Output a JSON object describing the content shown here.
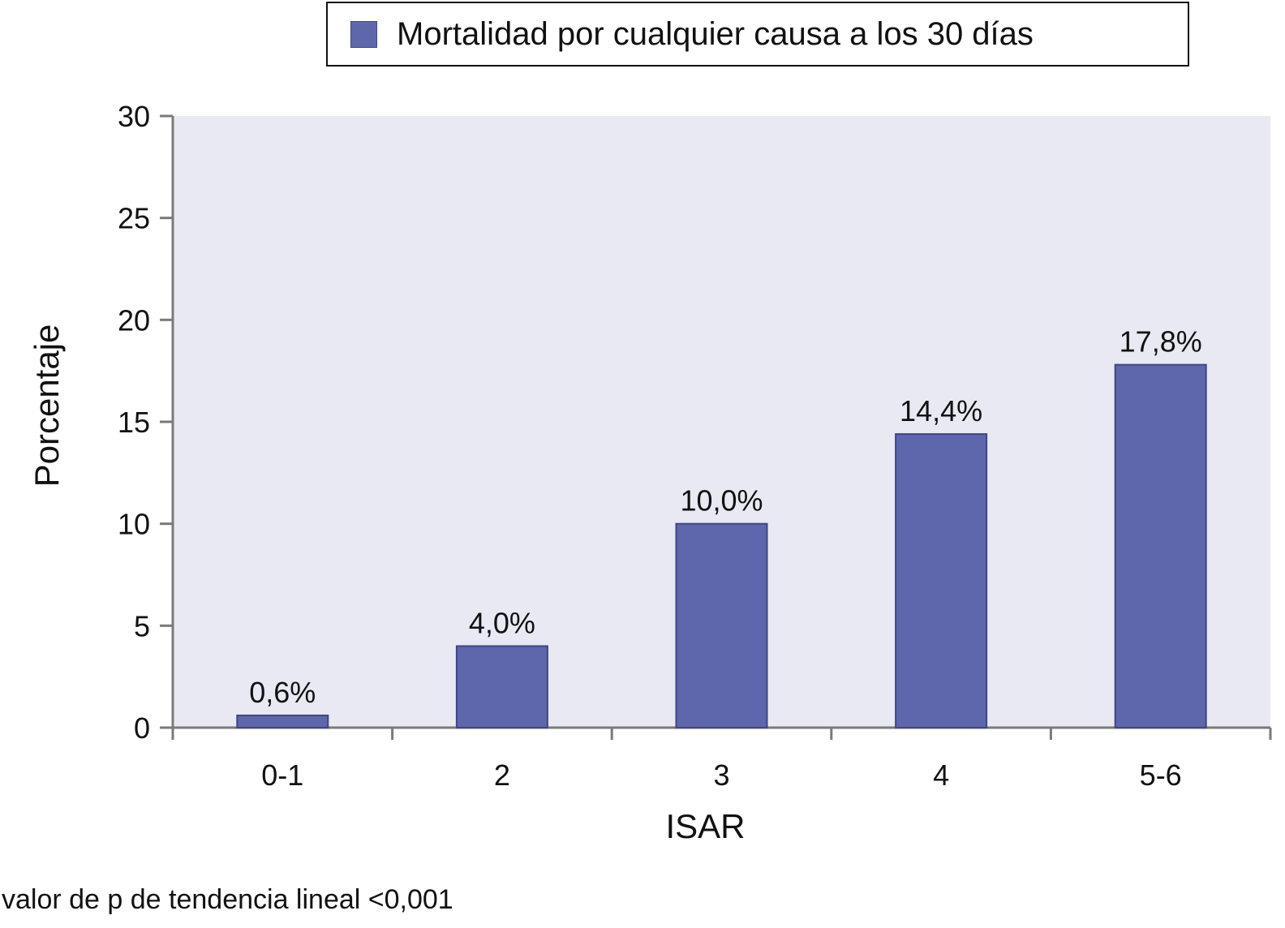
{
  "chart_data": {
    "type": "bar",
    "categories": [
      "0-1",
      "2",
      "3",
      "4",
      "5-6"
    ],
    "series": [
      {
        "name": "Mortalidad por cualquier causa a los 30 días",
        "values": [
          0.6,
          4.0,
          10.0,
          14.4,
          17.8
        ],
        "labels": [
          "0,6%",
          "4,0%",
          "10,0%",
          "14,4%",
          "17,8%"
        ]
      }
    ],
    "xlabel": "ISAR",
    "ylabel": "Porcentaje",
    "ylim": [
      0,
      30
    ],
    "yticks": [
      "0",
      "5",
      "10",
      "15",
      "20",
      "25",
      "30"
    ],
    "legend_position": "top",
    "grid": false
  },
  "footnote": "valor de p de tendencia lineal <0,001",
  "colors": {
    "bar": "#5e67ab",
    "bar_edge": "#3f4685",
    "plot_background": "#e9e9f3",
    "axis": "#7a7a7a"
  }
}
